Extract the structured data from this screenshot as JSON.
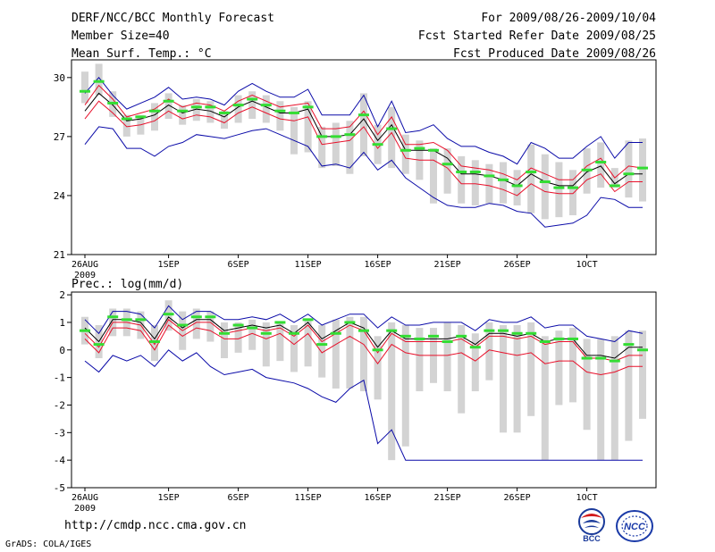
{
  "header": {
    "left": [
      "DERF/NCC/BCC Monthly Forecast",
      "Member Size=40",
      "Mean Surf. Temp.: °C"
    ],
    "right": [
      "For 2009/08/26-2009/10/04",
      "Fcst Started Refer Date 2009/08/25",
      "Fcst Produced Date 2009/08/26"
    ]
  },
  "footer": {
    "url": "http://cmdp.ncc.cma.gov.cn",
    "credit": "GrADS: COLA/IGES",
    "logo_left_text": "BCC",
    "logo_right_text": "NCC"
  },
  "colors": {
    "mean": "#000000",
    "pct": "#e8102a",
    "envelope": "#0a0aa8",
    "range": "#d3d3d3",
    "median": "#33dd33"
  },
  "chart_data": [
    {
      "type": "line",
      "name": "temperature",
      "title": "Mean Surf. Temp.: °C",
      "xlabel": "",
      "ylabel": "°C",
      "ylim": [
        21,
        30.9
      ],
      "yticks": [
        21,
        24,
        27,
        30
      ],
      "xlim": [
        0,
        39.6
      ],
      "xticks": [
        {
          "i": 0,
          "label": "26AUG",
          "sub": "2009"
        },
        {
          "i": 6,
          "label": "1SEP"
        },
        {
          "i": 11,
          "label": "6SEP"
        },
        {
          "i": 16,
          "label": "11SEP"
        },
        {
          "i": 21,
          "label": "16SEP"
        },
        {
          "i": 26,
          "label": "21SEP"
        },
        {
          "i": 31,
          "label": "26SEP"
        },
        {
          "i": 36,
          "label": "1OCT"
        }
      ],
      "series": [
        {
          "name": "mean",
          "color": "#000000",
          "values": [
            28.3,
            29.2,
            28.6,
            27.8,
            27.9,
            28.1,
            28.6,
            28.2,
            28.4,
            28.3,
            28.0,
            28.5,
            28.8,
            28.5,
            28.2,
            28.2,
            28.4,
            27.0,
            27.0,
            27.1,
            27.9,
            26.8,
            27.6,
            26.3,
            26.3,
            26.3,
            25.9,
            25.1,
            25.1,
            25.0,
            24.8,
            24.5,
            25.1,
            24.7,
            24.5,
            24.5,
            25.2,
            25.5,
            24.6,
            25.1,
            25.1
          ]
        },
        {
          "name": "upper",
          "color": "#e8102a",
          "values": [
            28.6,
            29.6,
            28.9,
            28.0,
            28.2,
            28.4,
            28.9,
            28.5,
            28.7,
            28.6,
            28.3,
            28.8,
            29.1,
            28.8,
            28.5,
            28.6,
            28.7,
            27.4,
            27.4,
            27.5,
            28.3,
            27.1,
            28.0,
            26.6,
            26.6,
            26.7,
            26.3,
            25.5,
            25.4,
            25.3,
            25.1,
            24.8,
            25.4,
            25.1,
            24.8,
            24.8,
            25.5,
            25.9,
            24.9,
            25.5,
            25.4
          ]
        },
        {
          "name": "lower",
          "color": "#e8102a",
          "values": [
            27.9,
            28.8,
            28.2,
            27.5,
            27.6,
            27.8,
            28.3,
            27.9,
            28.1,
            28.0,
            27.7,
            28.2,
            28.5,
            28.2,
            27.9,
            27.8,
            28.0,
            26.6,
            26.7,
            26.8,
            27.5,
            26.4,
            27.2,
            25.9,
            25.8,
            25.8,
            25.4,
            24.6,
            24.6,
            24.5,
            24.3,
            24.0,
            24.6,
            24.2,
            24.1,
            24.1,
            24.8,
            25.1,
            24.2,
            24.7,
            24.7
          ]
        },
        {
          "name": "max",
          "color": "#0a0aa8",
          "values": [
            29.2,
            30.0,
            29.1,
            28.4,
            28.7,
            29.0,
            29.5,
            28.9,
            29.0,
            28.9,
            28.6,
            29.3,
            29.7,
            29.3,
            29.0,
            29.0,
            29.4,
            28.1,
            28.1,
            28.1,
            29.1,
            27.5,
            28.8,
            27.2,
            27.3,
            27.6,
            26.9,
            26.5,
            26.5,
            26.2,
            26.0,
            25.6,
            26.7,
            26.4,
            25.9,
            25.9,
            26.5,
            27.0,
            25.9,
            26.7,
            26.7
          ]
        },
        {
          "name": "min",
          "color": "#0a0aa8",
          "values": [
            26.6,
            27.5,
            27.4,
            26.4,
            26.4,
            26.0,
            26.5,
            26.7,
            27.1,
            27.0,
            26.9,
            27.1,
            27.3,
            27.4,
            27.1,
            26.8,
            26.5,
            25.5,
            25.6,
            25.4,
            26.2,
            25.3,
            25.8,
            24.9,
            24.4,
            23.9,
            23.5,
            23.4,
            23.4,
            23.6,
            23.5,
            23.2,
            23.1,
            22.4,
            22.5,
            22.6,
            23.0,
            23.9,
            23.8,
            23.4,
            23.4
          ]
        }
      ],
      "range_bars": [
        [
          28.7,
          30.3
        ],
        [
          29.1,
          30.7
        ],
        [
          28.0,
          29.3
        ],
        [
          27.0,
          28.1
        ],
        [
          27.1,
          28.1
        ],
        [
          27.3,
          28.7
        ],
        [
          27.9,
          29.2
        ],
        [
          27.6,
          28.6
        ],
        [
          27.8,
          28.9
        ],
        [
          27.7,
          28.8
        ],
        [
          27.4,
          28.3
        ],
        [
          27.7,
          29.1
        ],
        [
          27.9,
          29.3
        ],
        [
          27.7,
          29.1
        ],
        [
          27.3,
          28.8
        ],
        [
          26.1,
          28.5
        ],
        [
          26.2,
          28.8
        ],
        [
          25.4,
          27.5
        ],
        [
          25.5,
          27.7
        ],
        [
          25.1,
          27.8
        ],
        [
          26.0,
          29.2
        ],
        [
          25.6,
          27.6
        ],
        [
          25.4,
          28.5
        ],
        [
          25.1,
          27.1
        ],
        [
          24.8,
          26.8
        ],
        [
          23.6,
          26.4
        ],
        [
          24.1,
          26.4
        ],
        [
          23.6,
          26.0
        ],
        [
          23.5,
          25.8
        ],
        [
          23.6,
          25.6
        ],
        [
          23.6,
          25.7
        ],
        [
          23.5,
          25.3
        ],
        [
          23.1,
          26.6
        ],
        [
          22.8,
          26.1
        ],
        [
          22.9,
          25.7
        ],
        [
          23.0,
          25.3
        ],
        [
          24.1,
          26.4
        ],
        [
          24.4,
          26.7
        ],
        [
          24.4,
          25.4
        ],
        [
          23.9,
          26.8
        ],
        [
          23.7,
          26.9
        ]
      ],
      "medians": [
        29.3,
        29.8,
        28.7,
        27.9,
        28.0,
        28.3,
        28.8,
        28.3,
        28.5,
        28.5,
        28.2,
        28.6,
        28.9,
        28.6,
        28.3,
        28.2,
        28.5,
        27.0,
        27.0,
        27.1,
        28.1,
        26.6,
        27.4,
        26.3,
        26.4,
        26.3,
        25.6,
        25.2,
        25.2,
        25.0,
        24.8,
        24.5,
        25.2,
        24.7,
        24.4,
        24.4,
        25.3,
        25.7,
        24.5,
        25.1,
        25.4
      ]
    },
    {
      "type": "line",
      "name": "precipitation",
      "title": "Prec.: log(mm/d)",
      "xlabel": "",
      "ylabel": "log(mm/d)",
      "ylim": [
        -5,
        2.1
      ],
      "yticks": [
        -5,
        -4,
        -3,
        -2,
        -1,
        0,
        1,
        2
      ],
      "xlim": [
        0,
        39.6
      ],
      "xticks": [
        {
          "i": 0,
          "label": "26AUG",
          "sub": "2009"
        },
        {
          "i": 6,
          "label": "1SEP"
        },
        {
          "i": 11,
          "label": "6SEP"
        },
        {
          "i": 16,
          "label": "11SEP"
        },
        {
          "i": 21,
          "label": "16SEP"
        },
        {
          "i": 26,
          "label": "21SEP"
        },
        {
          "i": 31,
          "label": "26SEP"
        },
        {
          "i": 36,
          "label": "1OCT"
        }
      ],
      "series": [
        {
          "name": "mean",
          "color": "#000000",
          "values": [
            0.8,
            0.3,
            1.1,
            1.1,
            1.0,
            0.4,
            1.2,
            0.8,
            1.1,
            1.1,
            0.7,
            0.8,
            0.9,
            0.8,
            0.9,
            0.6,
            1.0,
            0.4,
            0.7,
            1.0,
            0.8,
            0.1,
            0.7,
            0.4,
            0.4,
            0.4,
            0.4,
            0.5,
            0.2,
            0.6,
            0.6,
            0.5,
            0.6,
            0.3,
            0.4,
            0.4,
            -0.2,
            -0.2,
            -0.3,
            0.1,
            0.1
          ]
        },
        {
          "name": "upper",
          "color": "#e8102a",
          "values": [
            0.6,
            0.1,
            1.0,
            1.0,
            0.9,
            0.2,
            1.1,
            0.7,
            1.0,
            1.0,
            0.6,
            0.7,
            0.8,
            0.7,
            0.8,
            0.5,
            0.9,
            0.3,
            0.6,
            0.9,
            0.7,
            -0.1,
            0.6,
            0.3,
            0.3,
            0.3,
            0.3,
            0.4,
            0.1,
            0.5,
            0.5,
            0.4,
            0.5,
            0.2,
            0.3,
            0.3,
            -0.3,
            -0.3,
            -0.4,
            -0.2,
            -0.2
          ]
        },
        {
          "name": "lower",
          "color": "#e8102a",
          "values": [
            0.4,
            -0.1,
            0.8,
            0.8,
            0.7,
            0.0,
            0.9,
            0.5,
            0.8,
            0.7,
            0.4,
            0.4,
            0.6,
            0.4,
            0.6,
            0.2,
            0.6,
            -0.1,
            0.2,
            0.5,
            0.2,
            -0.5,
            0.2,
            -0.1,
            -0.2,
            -0.2,
            -0.2,
            -0.1,
            -0.4,
            0.0,
            -0.1,
            -0.2,
            -0.1,
            -0.5,
            -0.4,
            -0.4,
            -0.8,
            -0.9,
            -0.8,
            -0.6,
            -0.6
          ]
        },
        {
          "name": "max",
          "color": "#0a0aa8",
          "values": [
            1.1,
            0.6,
            1.4,
            1.4,
            1.3,
            0.8,
            1.6,
            1.1,
            1.4,
            1.4,
            1.1,
            1.1,
            1.2,
            1.1,
            1.3,
            1.0,
            1.3,
            0.9,
            1.1,
            1.3,
            1.3,
            0.8,
            1.2,
            0.9,
            0.9,
            1.0,
            1.0,
            1.0,
            0.7,
            1.1,
            1.0,
            1.0,
            1.2,
            0.8,
            0.9,
            0.9,
            0.5,
            0.4,
            0.3,
            0.7,
            0.6
          ]
        },
        {
          "name": "min",
          "color": "#0a0aa8",
          "values": [
            -0.4,
            -0.8,
            -0.2,
            -0.4,
            -0.2,
            -0.6,
            0.0,
            -0.4,
            -0.1,
            -0.6,
            -0.9,
            -0.8,
            -0.7,
            -1.0,
            -1.1,
            -1.2,
            -1.4,
            -1.7,
            -1.9,
            -1.4,
            -1.1,
            -3.4,
            -2.9,
            -4.0,
            -4.0,
            -4.0,
            -4.0,
            -4.0,
            -4.0,
            -4.0,
            -4.0,
            -4.0,
            -4.0,
            -4.0,
            -4.0,
            -4.0,
            -4.0,
            -4.0,
            -4.0,
            -4.0,
            -4.0
          ]
        }
      ],
      "range_bars": [
        [
          0.2,
          1.2
        ],
        [
          -0.3,
          0.9
        ],
        [
          0.5,
          1.5
        ],
        [
          0.5,
          1.5
        ],
        [
          0.4,
          1.4
        ],
        [
          -0.4,
          0.9
        ],
        [
          0.7,
          1.8
        ],
        [
          0.0,
          1.4
        ],
        [
          0.4,
          1.5
        ],
        [
          0.3,
          1.4
        ],
        [
          -0.3,
          1.0
        ],
        [
          -0.1,
          1.0
        ],
        [
          0.0,
          1.1
        ],
        [
          -0.6,
          1.0
        ],
        [
          -0.4,
          1.0
        ],
        [
          -0.8,
          0.9
        ],
        [
          -0.6,
          1.1
        ],
        [
          -1.0,
          0.9
        ],
        [
          -1.4,
          1.1
        ],
        [
          -1.4,
          1.2
        ],
        [
          -1.5,
          1.2
        ],
        [
          -1.8,
          0.5
        ],
        [
          -4.0,
          1.0
        ],
        [
          -3.5,
          0.9
        ],
        [
          -1.5,
          0.8
        ],
        [
          -1.2,
          0.8
        ],
        [
          -1.5,
          1.0
        ],
        [
          -2.3,
          0.9
        ],
        [
          -1.5,
          0.6
        ],
        [
          -1.1,
          1.0
        ],
        [
          -3.0,
          0.9
        ],
        [
          -3.0,
          0.9
        ],
        [
          -2.4,
          1.0
        ],
        [
          -4.0,
          0.5
        ],
        [
          -2.0,
          0.7
        ],
        [
          -1.9,
          0.8
        ],
        [
          -2.9,
          0.4
        ],
        [
          -4.0,
          0.4
        ],
        [
          -4.0,
          0.5
        ],
        [
          -3.3,
          0.7
        ],
        [
          -2.5,
          0.7
        ]
      ],
      "medians": [
        0.7,
        0.2,
        1.2,
        1.1,
        1.1,
        0.3,
        1.3,
        0.9,
        1.2,
        1.2,
        0.6,
        0.9,
        0.8,
        0.6,
        1.0,
        0.6,
        1.1,
        0.2,
        0.6,
        1.0,
        0.7,
        0.0,
        0.7,
        0.5,
        0.4,
        0.5,
        0.3,
        0.5,
        0.1,
        0.7,
        0.7,
        0.6,
        0.6,
        0.3,
        0.4,
        0.4,
        -0.3,
        -0.3,
        -0.4,
        0.2,
        0.0
      ]
    }
  ]
}
